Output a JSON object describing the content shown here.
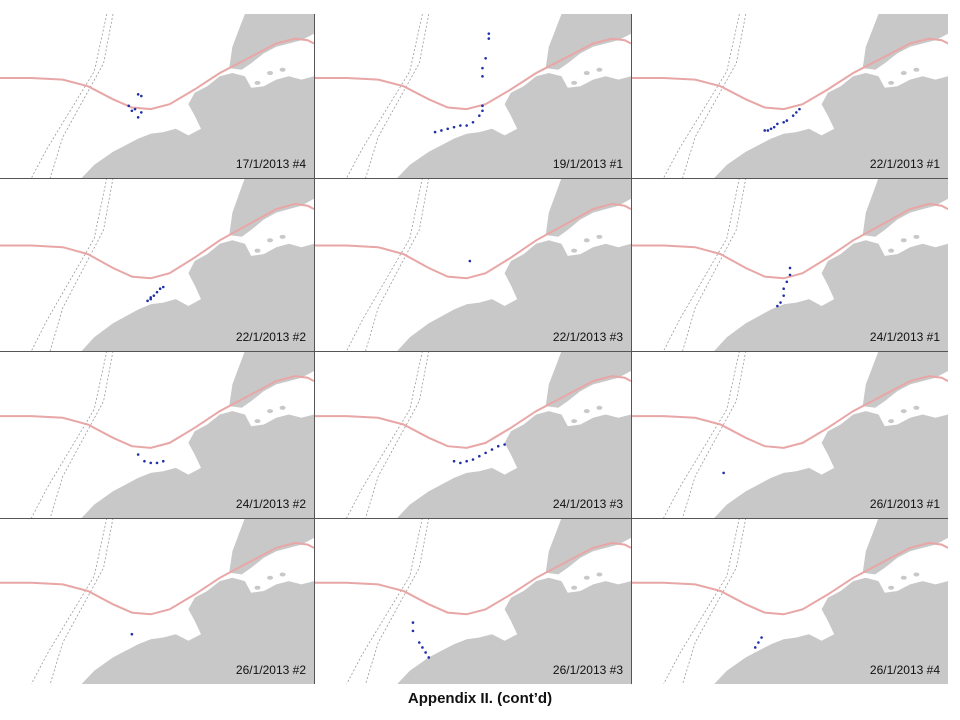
{
  "caption": "Appendix II. (cont’d)",
  "colors": {
    "land": "#c8c8c8",
    "route": "#e8a6a6",
    "observations": "#1f2fa8",
    "grid_lines": "#555555"
  },
  "panels": [
    {
      "label": "17/1/2013 #4",
      "obs": [
        [
          0.44,
          0.49
        ],
        [
          0.45,
          0.5
        ],
        [
          0.43,
          0.58
        ],
        [
          0.45,
          0.6
        ],
        [
          0.44,
          0.63
        ],
        [
          0.42,
          0.59
        ],
        [
          0.41,
          0.56
        ]
      ]
    },
    {
      "label": "19/1/2013 #1",
      "obs": [
        [
          0.55,
          0.12
        ],
        [
          0.55,
          0.15
        ],
        [
          0.54,
          0.27
        ],
        [
          0.53,
          0.33
        ],
        [
          0.53,
          0.38
        ],
        [
          0.53,
          0.56
        ],
        [
          0.53,
          0.59
        ],
        [
          0.52,
          0.62
        ],
        [
          0.5,
          0.66
        ],
        [
          0.48,
          0.68
        ],
        [
          0.46,
          0.68
        ],
        [
          0.44,
          0.69
        ],
        [
          0.42,
          0.7
        ],
        [
          0.4,
          0.71
        ],
        [
          0.38,
          0.72
        ]
      ]
    },
    {
      "label": "22/1/2013 #1",
      "obs": [
        [
          0.53,
          0.58
        ],
        [
          0.52,
          0.6
        ],
        [
          0.51,
          0.62
        ],
        [
          0.49,
          0.65
        ],
        [
          0.48,
          0.66
        ],
        [
          0.46,
          0.67
        ],
        [
          0.45,
          0.69
        ],
        [
          0.44,
          0.7
        ],
        [
          0.43,
          0.71
        ],
        [
          0.42,
          0.71
        ]
      ]
    },
    {
      "label": "22/1/2013 #2",
      "obs": [
        [
          0.52,
          0.63
        ],
        [
          0.51,
          0.64
        ],
        [
          0.5,
          0.66
        ],
        [
          0.49,
          0.68
        ],
        [
          0.48,
          0.7
        ],
        [
          0.47,
          0.71
        ],
        [
          0.48,
          0.69
        ]
      ]
    },
    {
      "label": "22/1/2013 #3",
      "obs": [
        [
          0.49,
          0.48
        ]
      ]
    },
    {
      "label": "24/1/2013 #1",
      "obs": [
        [
          0.5,
          0.52
        ],
        [
          0.5,
          0.56
        ],
        [
          0.49,
          0.6
        ],
        [
          0.48,
          0.64
        ],
        [
          0.48,
          0.68
        ],
        [
          0.47,
          0.72
        ],
        [
          0.46,
          0.74
        ]
      ]
    },
    {
      "label": "24/1/2013 #2",
      "obs": [
        [
          0.44,
          0.62
        ],
        [
          0.46,
          0.66
        ],
        [
          0.48,
          0.67
        ],
        [
          0.5,
          0.67
        ],
        [
          0.52,
          0.66
        ]
      ]
    },
    {
      "label": "24/1/2013 #3",
      "obs": [
        [
          0.44,
          0.66
        ],
        [
          0.46,
          0.67
        ],
        [
          0.48,
          0.66
        ],
        [
          0.5,
          0.65
        ],
        [
          0.52,
          0.63
        ],
        [
          0.54,
          0.61
        ],
        [
          0.56,
          0.59
        ],
        [
          0.58,
          0.57
        ],
        [
          0.6,
          0.56
        ]
      ]
    },
    {
      "label": "26/1/2013 #1",
      "obs": [
        [
          0.29,
          0.73
        ]
      ]
    },
    {
      "label": "26/1/2013 #2",
      "obs": [
        [
          0.42,
          0.7
        ]
      ]
    },
    {
      "label": "26/1/2013 #3",
      "obs": [
        [
          0.31,
          0.63
        ],
        [
          0.31,
          0.68
        ],
        [
          0.33,
          0.75
        ],
        [
          0.34,
          0.78
        ],
        [
          0.35,
          0.81
        ],
        [
          0.36,
          0.84
        ]
      ]
    },
    {
      "label": "26/1/2013 #4",
      "obs": [
        [
          0.41,
          0.72
        ],
        [
          0.4,
          0.75
        ],
        [
          0.39,
          0.78
        ]
      ]
    }
  ]
}
